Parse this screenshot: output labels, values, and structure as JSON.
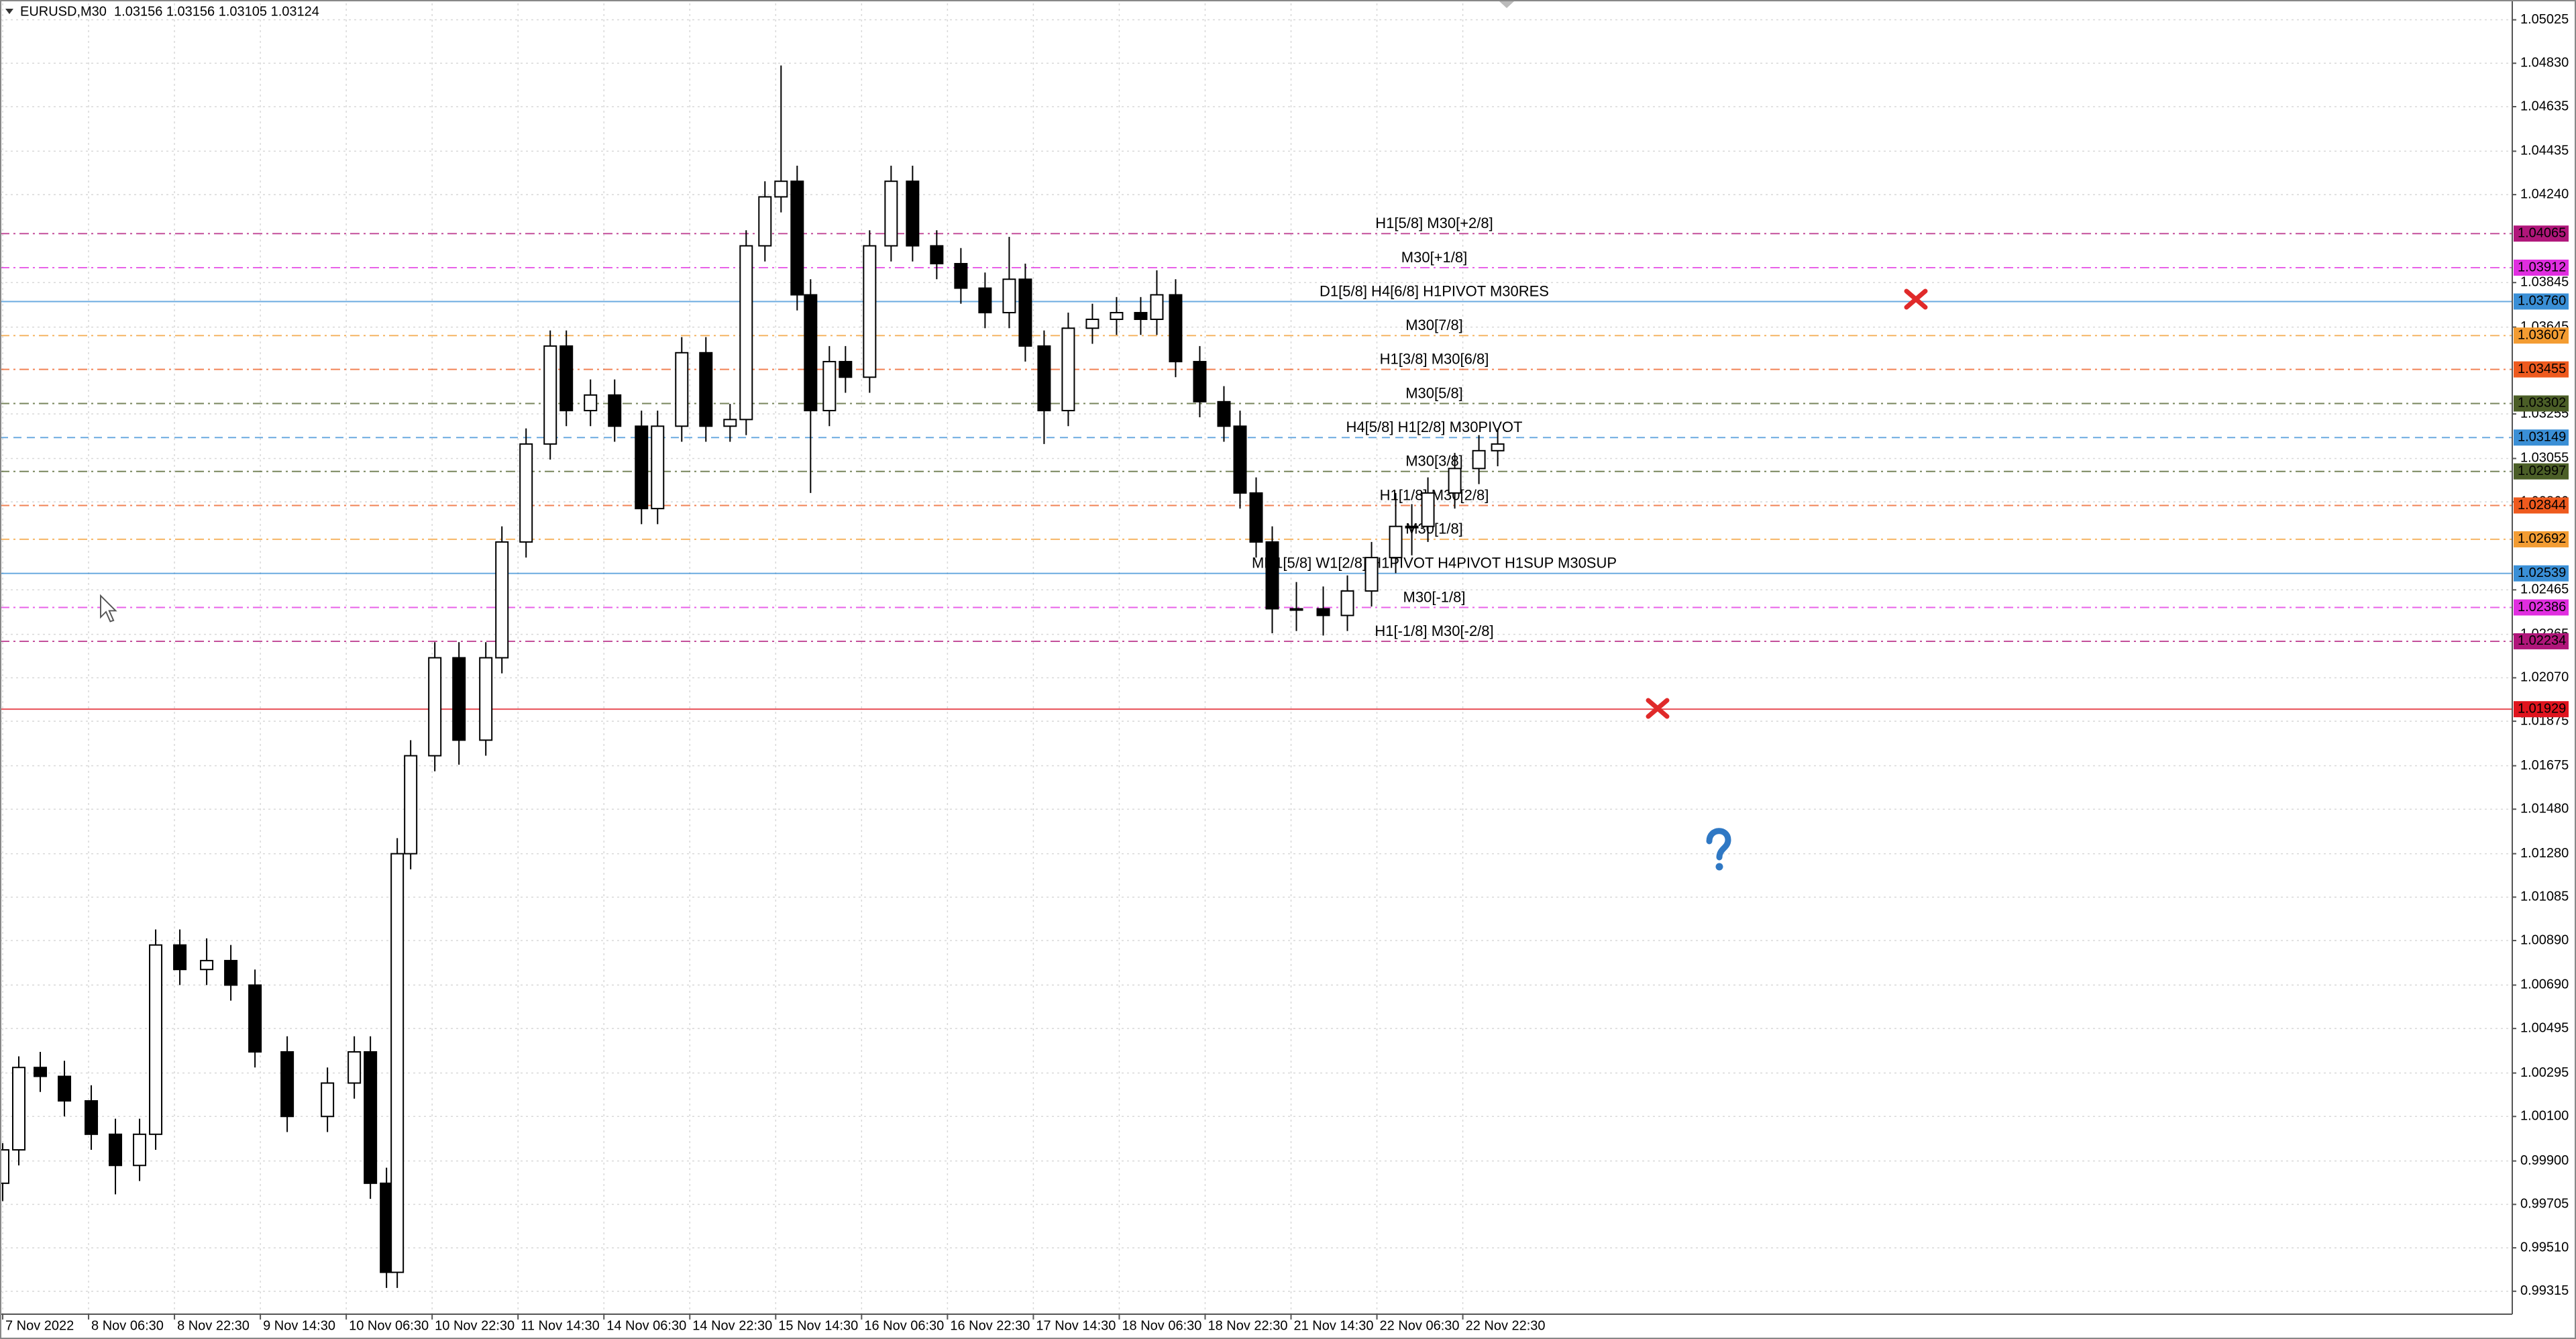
{
  "chart_data": {
    "type": "candlestick",
    "title": "EURUSD,M30  1.03156 1.03156 1.03105 1.03124",
    "xlim": [
      0,
      936
    ],
    "ylim": [
      0.99212,
      1.05099
    ],
    "grid": true,
    "xticks": [
      {
        "value": 1,
        "label": "7 Nov 2022"
      },
      {
        "value": 33,
        "label": "8 Nov 06:30"
      },
      {
        "value": 65,
        "label": "8 Nov 22:30"
      },
      {
        "value": 97,
        "label": "9 Nov 14:30"
      },
      {
        "value": 129,
        "label": "10 Nov 06:30"
      },
      {
        "value": 161,
        "label": "10 Nov 22:30"
      },
      {
        "value": 193,
        "label": "11 Nov 14:30"
      },
      {
        "value": 225,
        "label": "14 Nov 06:30"
      },
      {
        "value": 257,
        "label": "14 Nov 22:30"
      },
      {
        "value": 289,
        "label": "15 Nov 14:30"
      },
      {
        "value": 321,
        "label": "16 Nov 06:30"
      },
      {
        "value": 353,
        "label": "16 Nov 22:30"
      },
      {
        "value": 385,
        "label": "17 Nov 14:30"
      },
      {
        "value": 417,
        "label": "18 Nov 06:30"
      },
      {
        "value": 449,
        "label": "18 Nov 22:30"
      },
      {
        "value": 481,
        "label": "21 Nov 14:30"
      },
      {
        "value": 513,
        "label": "22 Nov 06:30"
      },
      {
        "value": 545,
        "label": "22 Nov 22:30"
      }
    ],
    "yticks": [
      1.05025,
      {
        "value": 1.0483,
        "label": "1.04830"
      },
      1.04635,
      1.04435,
      {
        "value": 1.0424,
        "label": "1.04240"
      },
      1.03845,
      1.03645,
      1.03255,
      1.03055,
      {
        "value": 1.0286,
        "label": "1.02860"
      },
      1.02465,
      1.02265,
      {
        "value": 1.0207,
        "label": "1.02070"
      },
      1.01875,
      1.01675,
      {
        "value": 1.0148,
        "label": "1.01480"
      },
      {
        "value": 1.0128,
        "label": "1.01280"
      },
      1.01085,
      {
        "value": 1.0089,
        "label": "1.00890"
      },
      {
        "value": 1.0069,
        "label": "1.00690"
      },
      1.00495,
      1.00295,
      {
        "value": 1.001,
        "label": "1.00100"
      },
      {
        "value": 0.999,
        "label": "0.99900"
      },
      0.99705,
      {
        "value": 0.9951,
        "label": "0.99510"
      },
      0.99315
    ],
    "up_color": "#ffffff",
    "down_color": "#000000",
    "x": [
      1,
      7,
      15,
      24,
      34,
      43,
      52,
      58,
      67,
      77,
      86,
      95,
      107,
      122,
      132,
      138,
      144,
      148,
      153,
      162,
      171,
      181,
      187,
      196,
      205,
      211,
      220,
      229,
      239,
      245,
      254,
      263,
      272,
      278,
      285,
      291,
      297,
      302,
      309,
      315,
      324,
      332,
      340,
      349,
      358,
      367,
      376,
      382,
      389,
      398,
      407,
      416,
      425,
      431,
      438,
      447,
      456,
      462,
      468,
      474,
      483,
      493,
      502,
      511,
      520,
      526,
      532,
      542,
      551,
      558
    ],
    "open": [
      0.998,
      0.9995,
      1.0032,
      1.0028,
      1.0017,
      1.0002,
      0.9988,
      1.0002,
      1.0087,
      1.0076,
      1.008,
      1.0069,
      1.0039,
      1.001,
      1.0025,
      1.0039,
      0.998,
      0.994,
      1.0128,
      1.0172,
      1.0216,
      1.0179,
      1.0216,
      1.0268,
      1.0312,
      1.0356,
      1.0327,
      1.0334,
      1.032,
      1.0283,
      1.032,
      1.0353,
      1.032,
      1.0323,
      1.0401,
      1.0423,
      1.043,
      1.0379,
      1.0327,
      1.0349,
      1.0342,
      1.0401,
      1.043,
      1.0401,
      1.0393,
      1.0382,
      1.0371,
      1.0386,
      1.0356,
      1.0327,
      1.0364,
      1.0368,
      1.0371,
      1.0368,
      1.0379,
      1.0349,
      1.0331,
      1.032,
      1.029,
      1.0268,
      1.0238,
      1.0238,
      1.0235,
      1.0246,
      1.0261,
      1.0275,
      1.0275,
      1.029,
      1.0301,
      1.0309
    ],
    "high": [
      0.9998,
      1.0037,
      1.0039,
      1.0035,
      1.0024,
      1.0009,
      1.0009,
      1.0094,
      1.0094,
      1.009,
      1.0087,
      1.0076,
      1.0046,
      1.0032,
      1.0046,
      1.0046,
      0.9987,
      1.0135,
      1.0179,
      1.0223,
      1.0223,
      1.0223,
      1.0275,
      1.0319,
      1.0363,
      1.0363,
      1.0341,
      1.0341,
      1.0327,
      1.0327,
      1.036,
      1.036,
      1.033,
      1.0408,
      1.043,
      1.0482,
      1.0437,
      1.0386,
      1.0356,
      1.0356,
      1.0408,
      1.0437,
      1.0437,
      1.0408,
      1.04,
      1.0389,
      1.0405,
      1.0393,
      1.0363,
      1.0371,
      1.0375,
      1.0378,
      1.0378,
      1.039,
      1.0386,
      1.0356,
      1.0338,
      1.0327,
      1.0297,
      1.0275,
      1.025,
      1.0248,
      1.0253,
      1.0268,
      1.029,
      1.0285,
      1.0297,
      1.0308,
      1.0316,
      1.0319
    ],
    "low": [
      0.9972,
      0.9988,
      1.0021,
      1.001,
      0.9995,
      0.9975,
      0.9981,
      0.9995,
      1.0069,
      1.0069,
      1.0062,
      1.0032,
      1.0003,
      1.0003,
      1.0018,
      0.9973,
      0.9933,
      0.9933,
      1.0121,
      1.0165,
      1.0168,
      1.0172,
      1.0209,
      1.0261,
      1.0305,
      1.032,
      1.032,
      1.0313,
      1.0276,
      1.0276,
      1.0313,
      1.0313,
      1.0313,
      1.0316,
      1.0394,
      1.0416,
      1.0372,
      1.029,
      1.032,
      1.0335,
      1.0335,
      1.0394,
      1.0394,
      1.0386,
      1.0375,
      1.0364,
      1.0364,
      1.0349,
      1.0312,
      1.032,
      1.0357,
      1.0361,
      1.0361,
      1.0361,
      1.0342,
      1.0324,
      1.0313,
      1.0283,
      1.0261,
      1.0227,
      1.0228,
      1.0226,
      1.0228,
      1.0239,
      1.0254,
      1.0262,
      1.0268,
      1.0283,
      1.0294,
      1.0302
    ],
    "close": [
      0.9995,
      1.0032,
      1.0028,
      1.0017,
      1.0002,
      0.9988,
      1.0002,
      1.0087,
      1.0076,
      1.008,
      1.0069,
      1.0039,
      1.001,
      1.0025,
      1.0039,
      0.998,
      0.994,
      1.0128,
      1.0172,
      1.0216,
      1.0179,
      1.0216,
      1.0268,
      1.0312,
      1.0356,
      1.0327,
      1.0334,
      1.032,
      1.0283,
      1.032,
      1.0353,
      1.032,
      1.0323,
      1.0401,
      1.0423,
      1.043,
      1.0379,
      1.0327,
      1.0349,
      1.0342,
      1.0401,
      1.043,
      1.0401,
      1.0393,
      1.0382,
      1.0371,
      1.0386,
      1.0356,
      1.0327,
      1.0364,
      1.0368,
      1.0371,
      1.0368,
      1.0379,
      1.0349,
      1.0331,
      1.032,
      1.029,
      1.0268,
      1.0238,
      1.0238,
      1.0235,
      1.0246,
      1.0261,
      1.0275,
      1.0275,
      1.029,
      1.0301,
      1.0309,
      1.0312
    ],
    "levels": {
      "values": [
        1.04065,
        1.03912,
        1.0376,
        1.03607,
        1.03455,
        1.03302,
        1.03149,
        1.02997,
        1.02844,
        1.02692,
        1.02539,
        1.02386,
        1.02234,
        1.01929
      ],
      "value_labels": [
        "1.04065",
        "1.03912",
        "1.03760",
        "1.03607",
        "1.03455",
        "1.03302",
        "1.03149",
        "1.02997",
        "1.02844",
        "1.02692",
        "1.02539",
        "1.02386",
        "1.02234",
        "1.01929"
      ],
      "names": [
        "H1[5/8] M30[+2/8]",
        "M30[+1/8]",
        "D1[5/8] H4[6/8] H1PIVOT M30RES",
        "M30[7/8]",
        "H1[3/8] M30[6/8]",
        "M30[5/8]",
        "H4[5/8] H1[2/8] M30PIVOT",
        "M30[3/8]",
        "H1[1/8] M30[2/8]",
        "M30[1/8]",
        "MN1[5/8] W1[2/8] H1PIVOT H4PIVOT H1SUP M30SUP",
        "M30[-1/8]",
        "H1[-1/8] M30[-2/8]",
        null
      ],
      "colors": [
        "#b0167a",
        "#e02ee0",
        "#3a8fd6",
        "#f39c32",
        "#ee5a1e",
        "#4b5e27",
        "#3a8fd6",
        "#4b5e27",
        "#ee5a1e",
        "#f39c32",
        "#3a8fd6",
        "#e02ee0",
        "#b0167a",
        "#e0141e"
      ],
      "styles": [
        "dashdot",
        "dashdot",
        "solid",
        "dashdot",
        "dashdot",
        "dashdot",
        "dashed",
        "dashdot",
        "dashdot",
        "dashdot",
        "solid",
        "dashdot",
        "dashdot",
        "solid"
      ]
    }
  }
}
